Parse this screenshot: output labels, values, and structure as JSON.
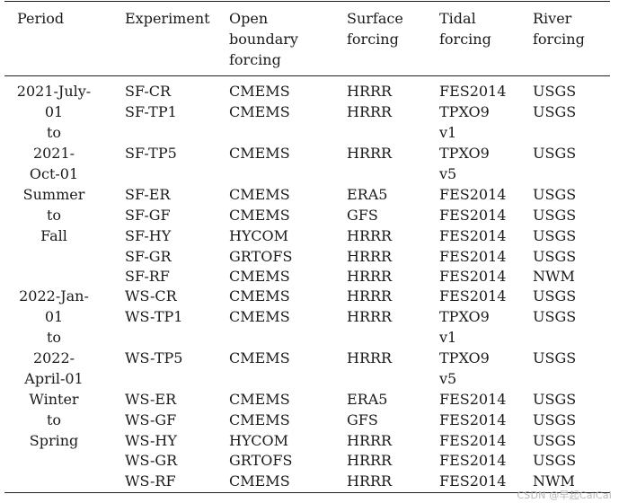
{
  "table": {
    "headers": {
      "period": "Period",
      "experiment": "Experiment",
      "open_boundary": "Open\nboundary\nforcing",
      "surface": "Surface\nforcing",
      "tidal": "Tidal\nforcing",
      "river": "River\nforcing"
    },
    "period_groups": [
      {
        "label": "2021-July-\n01\nto\n2021-\nOct-01\nSummer\nto\nFall"
      },
      {
        "label": "2022-Jan-\n01\nto\n2022-\nApril-01\nWinter\nto\nSpring"
      }
    ],
    "rows": [
      {
        "experiment": "SF-CR",
        "open": "CMEMS",
        "surface": "HRRR",
        "tidal": "FES2014",
        "river": "USGS"
      },
      {
        "experiment": "SF-TP1",
        "open": "CMEMS",
        "surface": "HRRR",
        "tidal": "TPXO9\nv1",
        "river": "USGS"
      },
      {
        "experiment": "SF-TP5",
        "open": "CMEMS",
        "surface": "HRRR",
        "tidal": "TPXO9\nv5",
        "river": "USGS"
      },
      {
        "experiment": "SF-ER",
        "open": "CMEMS",
        "surface": "ERA5",
        "tidal": "FES2014",
        "river": "USGS"
      },
      {
        "experiment": "SF-GF",
        "open": "CMEMS",
        "surface": "GFS",
        "tidal": "FES2014",
        "river": "USGS"
      },
      {
        "experiment": "SF-HY",
        "open": "HYCOM",
        "surface": "HRRR",
        "tidal": "FES2014",
        "river": "USGS"
      },
      {
        "experiment": "SF-GR",
        "open": "GRTOFS",
        "surface": "HRRR",
        "tidal": "FES2014",
        "river": "USGS"
      },
      {
        "experiment": "SF-RF",
        "open": "CMEMS",
        "surface": "HRRR",
        "tidal": "FES2014",
        "river": "NWM"
      },
      {
        "experiment": "WS-CR",
        "open": "CMEMS",
        "surface": "HRRR",
        "tidal": "FES2014",
        "river": "USGS"
      },
      {
        "experiment": "WS-TP1",
        "open": "CMEMS",
        "surface": "HRRR",
        "tidal": "TPXO9\nv1",
        "river": "USGS"
      },
      {
        "experiment": "WS-TP5",
        "open": "CMEMS",
        "surface": "HRRR",
        "tidal": "TPXO9\nv5",
        "river": "USGS"
      },
      {
        "experiment": "WS-ER",
        "open": "CMEMS",
        "surface": "ERA5",
        "tidal": "FES2014",
        "river": "USGS"
      },
      {
        "experiment": "WS-GF",
        "open": "CMEMS",
        "surface": "GFS",
        "tidal": "FES2014",
        "river": "USGS"
      },
      {
        "experiment": "WS-HY",
        "open": "HYCOM",
        "surface": "HRRR",
        "tidal": "FES2014",
        "river": "USGS"
      },
      {
        "experiment": "WS-GR",
        "open": "GRTOFS",
        "surface": "HRRR",
        "tidal": "FES2014",
        "river": "USGS"
      },
      {
        "experiment": "WS-RF",
        "open": "CMEMS",
        "surface": "HRRR",
        "tidal": "FES2014",
        "river": "NWM"
      }
    ]
  },
  "watermark": "CSDN @早起CaiCai"
}
